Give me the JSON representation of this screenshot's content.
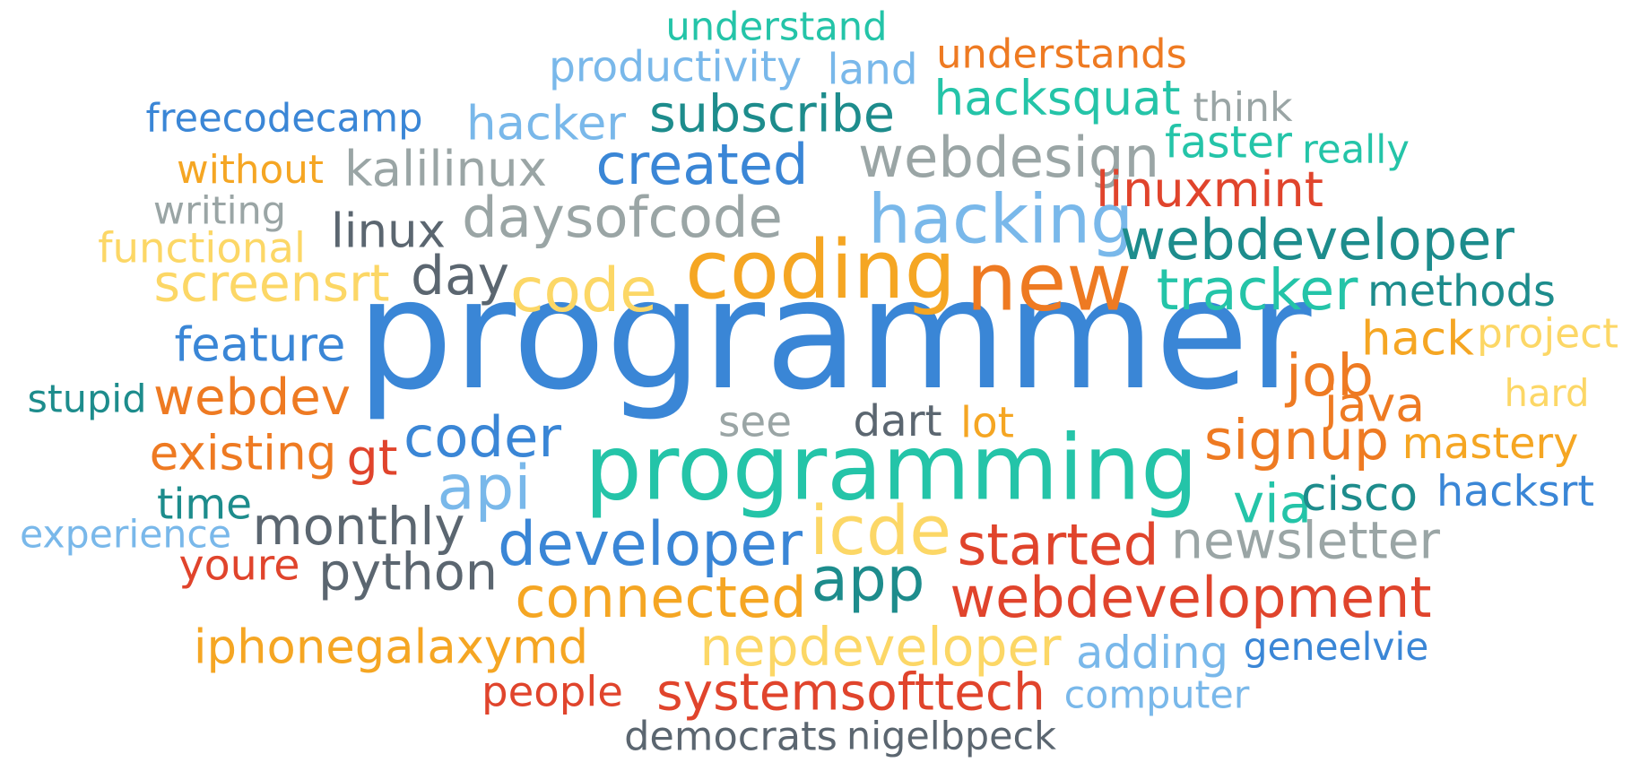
{
  "palette": {
    "blue": "#3a86d6",
    "light_blue": "#79b8ea",
    "teal": "#24c4a8",
    "dark_teal": "#1d8c8c",
    "orange": "#f5a623",
    "dark_orange": "#ee7a22",
    "red": "#e0442c",
    "yellow": "#fcd766",
    "gray": "#9aa5a5",
    "slate": "#5b6670"
  },
  "words": [
    {
      "text": "programmer",
      "color": "blue"
    },
    {
      "text": "programming",
      "color": "teal"
    },
    {
      "text": "coding",
      "color": "orange"
    },
    {
      "text": "new",
      "color": "dark_orange"
    },
    {
      "text": "hacking",
      "color": "light_blue"
    },
    {
      "text": "icde",
      "color": "yellow"
    },
    {
      "text": "code",
      "color": "yellow"
    },
    {
      "text": "daysofcode",
      "color": "gray"
    },
    {
      "text": "webdeveloper",
      "color": "dark_teal"
    },
    {
      "text": "webdevelopment",
      "color": "red"
    },
    {
      "text": "developer",
      "color": "blue"
    },
    {
      "text": "connected",
      "color": "orange"
    },
    {
      "text": "webdesign",
      "color": "gray"
    },
    {
      "text": "created",
      "color": "blue"
    },
    {
      "text": "tracker",
      "color": "teal"
    },
    {
      "text": "started",
      "color": "red"
    },
    {
      "text": "signup",
      "color": "dark_orange"
    },
    {
      "text": "systemsofttech",
      "color": "red"
    },
    {
      "text": "nepdeveloper",
      "color": "yellow"
    },
    {
      "text": "subscribe",
      "color": "dark_teal"
    },
    {
      "text": "coder",
      "color": "blue"
    },
    {
      "text": "screensrt",
      "color": "yellow"
    },
    {
      "text": "job",
      "color": "dark_orange"
    },
    {
      "text": "newsletter",
      "color": "gray"
    },
    {
      "text": "app",
      "color": "dark_teal"
    },
    {
      "text": "monthly",
      "color": "slate"
    },
    {
      "text": "python",
      "color": "slate"
    },
    {
      "text": "api",
      "color": "light_blue"
    },
    {
      "text": "hacksquat",
      "color": "teal"
    },
    {
      "text": "iphonegalaxymd",
      "color": "orange"
    },
    {
      "text": "webdev",
      "color": "dark_orange"
    },
    {
      "text": "hacker",
      "color": "light_blue"
    },
    {
      "text": "kalilinux",
      "color": "gray"
    },
    {
      "text": "linuxmint",
      "color": "red"
    },
    {
      "text": "existing",
      "color": "dark_orange"
    },
    {
      "text": "feature",
      "color": "blue"
    },
    {
      "text": "hack",
      "color": "orange"
    },
    {
      "text": "via",
      "color": "teal"
    },
    {
      "text": "cisco",
      "color": "dark_teal"
    },
    {
      "text": "day",
      "color": "slate"
    },
    {
      "text": "linux",
      "color": "slate"
    },
    {
      "text": "productivity",
      "color": "light_blue"
    },
    {
      "text": "java",
      "color": "dark_orange"
    },
    {
      "text": "methods",
      "color": "dark_teal"
    },
    {
      "text": "adding",
      "color": "light_blue"
    },
    {
      "text": "freecodecamp",
      "color": "blue"
    },
    {
      "text": "functional",
      "color": "yellow"
    },
    {
      "text": "mastery",
      "color": "orange"
    },
    {
      "text": "hacksrt",
      "color": "blue"
    },
    {
      "text": "understand",
      "color": "teal"
    },
    {
      "text": "understands",
      "color": "dark_orange"
    },
    {
      "text": "faster",
      "color": "teal"
    },
    {
      "text": "gt",
      "color": "red"
    },
    {
      "text": "land",
      "color": "light_blue"
    },
    {
      "text": "without",
      "color": "orange"
    },
    {
      "text": "project",
      "color": "yellow"
    },
    {
      "text": "democrats",
      "color": "slate"
    },
    {
      "text": "nigelbpeck",
      "color": "slate"
    },
    {
      "text": "people",
      "color": "red"
    },
    {
      "text": "geneelvie",
      "color": "blue"
    },
    {
      "text": "computer",
      "color": "light_blue"
    },
    {
      "text": "think",
      "color": "gray"
    },
    {
      "text": "really",
      "color": "teal"
    },
    {
      "text": "writing",
      "color": "gray"
    },
    {
      "text": "dart",
      "color": "slate"
    },
    {
      "text": "lot",
      "color": "orange"
    },
    {
      "text": "see",
      "color": "gray"
    },
    {
      "text": "time",
      "color": "dark_teal"
    },
    {
      "text": "experience",
      "color": "light_blue"
    },
    {
      "text": "youre",
      "color": "red"
    },
    {
      "text": "stupid",
      "color": "dark_teal"
    },
    {
      "text": "hard",
      "color": "yellow"
    }
  ]
}
